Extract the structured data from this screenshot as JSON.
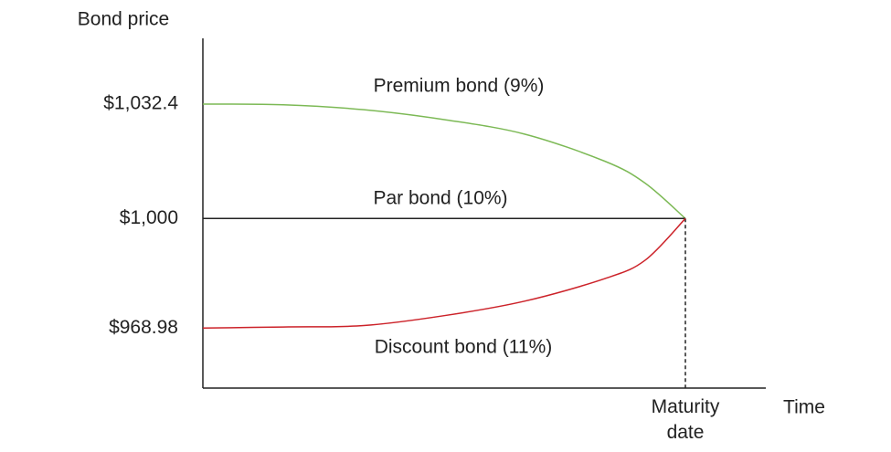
{
  "chart_data": {
    "type": "line",
    "y_label": "Bond price",
    "x_label": "Time",
    "x": [
      0,
      1,
      2,
      3,
      4,
      5,
      5.5,
      6
    ],
    "xlim": [
      0,
      7
    ],
    "xticks": [
      {
        "value": 6,
        "label": "Maturity date"
      }
    ],
    "ylim": [
      952,
      1051
    ],
    "yticks": [
      {
        "value": 968.98,
        "label": "$968.98"
      },
      {
        "value": 1000,
        "label": "$1,000"
      },
      {
        "value": 1032.4,
        "label": "$1,032.4"
      }
    ],
    "series": [
      {
        "name": "Premium bond (9%)",
        "color": "#7cb955",
        "values": [
          1032.4,
          1032.2,
          1030.8,
          1028.0,
          1023.9,
          1016.2,
          1010.0,
          1000
        ]
      },
      {
        "name": "Par bond (10%)",
        "color": "#222222",
        "values": [
          1000,
          1000,
          1000,
          1000,
          1000,
          1000,
          1000,
          1000
        ]
      },
      {
        "name": "Discount bond (11%)",
        "color": "#cc2229",
        "values": [
          968.98,
          969.3,
          969.7,
          972.5,
          976.6,
          983.0,
          988.2,
          1000
        ]
      }
    ]
  }
}
